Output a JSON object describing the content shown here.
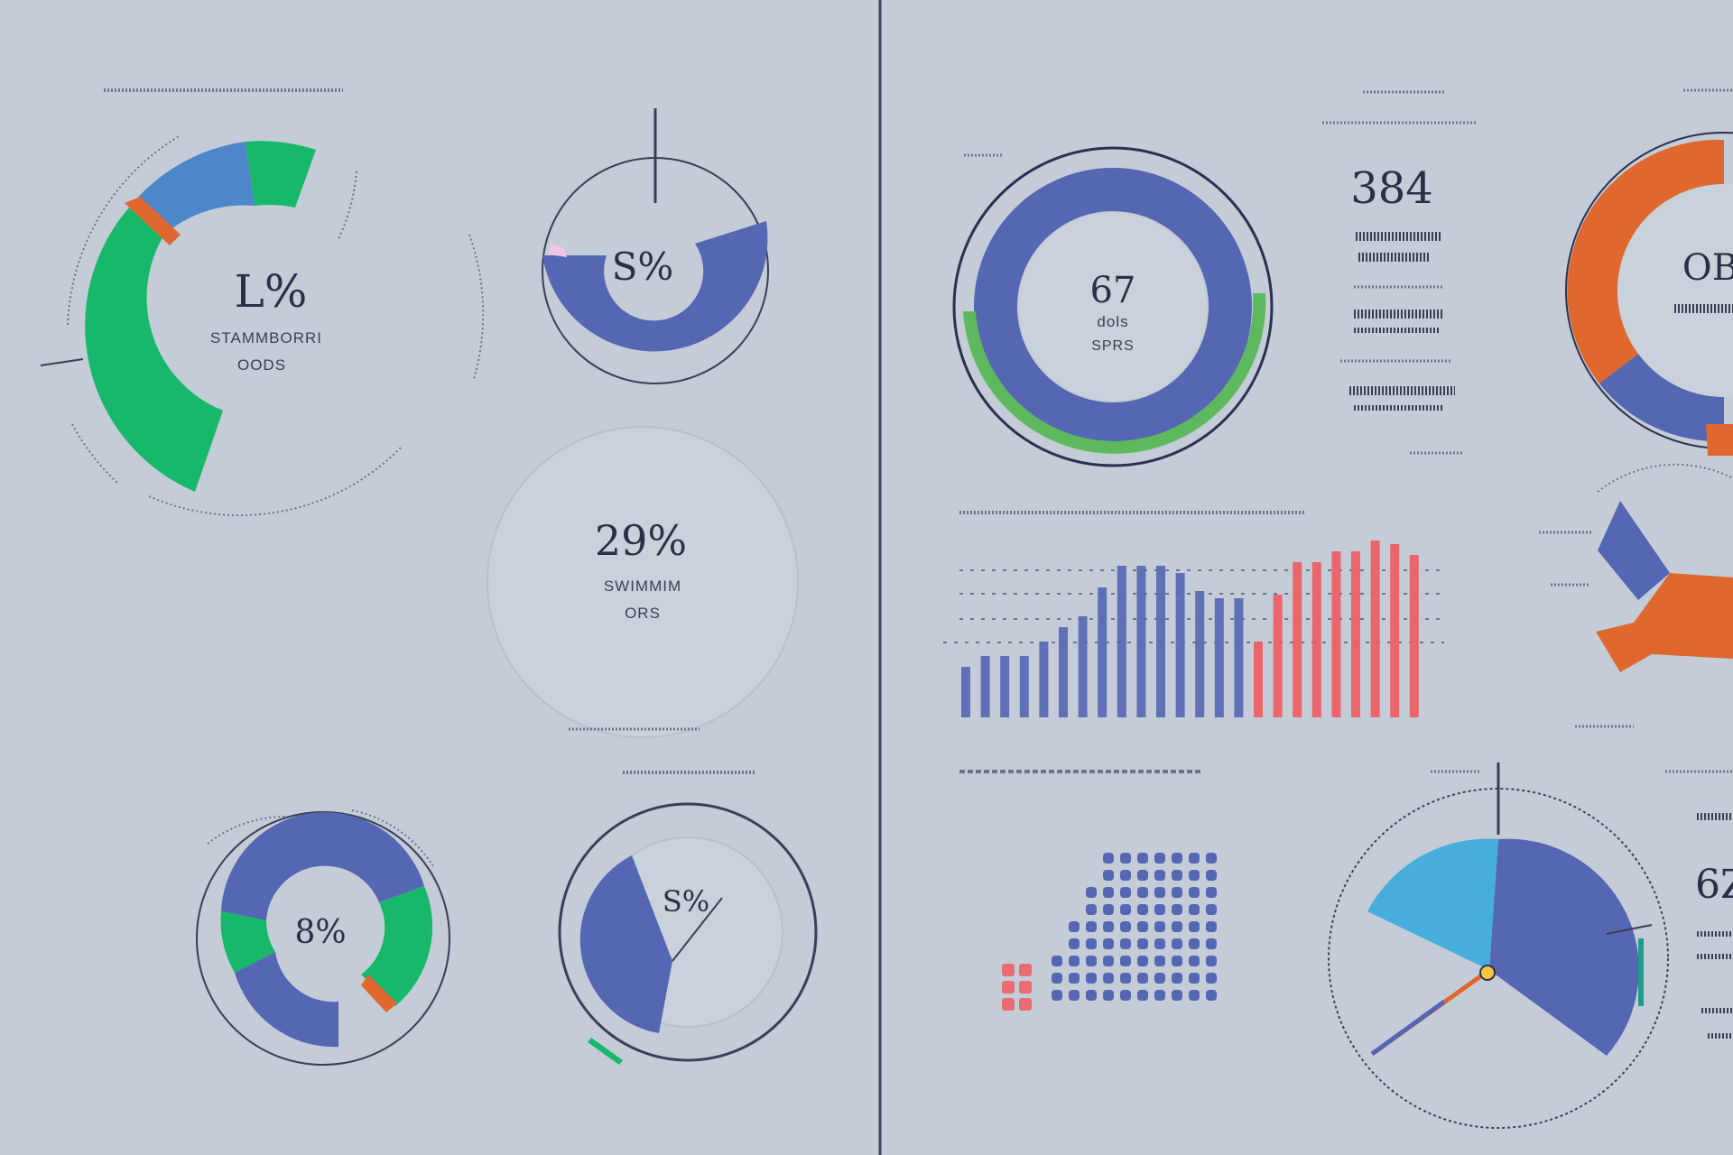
{
  "colors": {
    "background": "#c3ccd7",
    "blue": "#5566b3",
    "green": "#17b86a",
    "teal_blue": "#4d86c9",
    "orange": "#e0682f",
    "red": "#f05a60",
    "light_blue": "#47aedc",
    "ink": "#2b2f45"
  },
  "chart_data": [
    {
      "type": "pie",
      "id": "donut-left-large",
      "slices": [
        {
          "color": "green",
          "value": 75
        },
        {
          "color": "teal_blue",
          "value": 16
        },
        {
          "color": "orange",
          "value": 2
        }
      ],
      "center_value": "L%",
      "center_label": "STAMMBORRI",
      "center_sublabel": "OODS"
    },
    {
      "type": "pie",
      "id": "half-donut-top",
      "slices": [
        {
          "color": "blue",
          "value": 58
        }
      ],
      "center_value": "S%"
    },
    {
      "type": "pie",
      "id": "empty-circle",
      "slices": [],
      "center_value": "29%",
      "center_label": "SWIMMIM",
      "center_sublabel": "ORS"
    },
    {
      "type": "pie",
      "id": "donut-bottom-left",
      "slices": [
        {
          "color": "blue",
          "value": 58
        },
        {
          "color": "green",
          "value": 30
        },
        {
          "color": "orange",
          "value": 5
        }
      ],
      "center_value": "8%"
    },
    {
      "type": "pie",
      "id": "pie-bottom-center",
      "slices": [
        {
          "color": "blue",
          "value": 38
        }
      ],
      "center_value": "S%"
    },
    {
      "type": "pie",
      "id": "donut-right-top",
      "slices": [
        {
          "color": "blue",
          "value": 78
        },
        {
          "color": "green",
          "value": 22
        }
      ],
      "center_value": "67",
      "center_label": "dols",
      "center_sublabel": "SPRS"
    },
    {
      "type": "pie",
      "id": "donut-far-right",
      "slices": [
        {
          "color": "orange",
          "value": 62
        },
        {
          "color": "blue",
          "value": 30
        }
      ],
      "center_value": "OB"
    },
    {
      "type": "bar",
      "id": "bar-chart-right",
      "series": [
        {
          "color": "blue",
          "values": [
            28,
            34,
            34,
            34,
            42,
            50,
            56,
            72,
            84,
            84,
            84,
            80,
            70,
            66,
            66
          ]
        },
        {
          "color": "red",
          "values": [
            42,
            68,
            86,
            86,
            92,
            92,
            98,
            96,
            90
          ]
        }
      ]
    },
    {
      "type": "scatter",
      "id": "dot-matrix",
      "series": [
        {
          "color": "blue",
          "rows": 9,
          "cols": 10
        },
        {
          "color": "red",
          "rows": 3,
          "cols": 2
        }
      ]
    },
    {
      "type": "pie",
      "id": "pie-bottom-right",
      "slices": [
        {
          "color": "blue",
          "value": 32
        },
        {
          "color": "light_blue",
          "value": 14
        }
      ]
    },
    {
      "type": "pie",
      "id": "pie-far-right-mid",
      "slices": [
        {
          "color": "blue",
          "value": 22
        },
        {
          "color": "orange",
          "value": 30
        }
      ]
    }
  ],
  "stat": {
    "value": "384"
  },
  "text_fragments": {
    "far_right_value": "6Z"
  }
}
